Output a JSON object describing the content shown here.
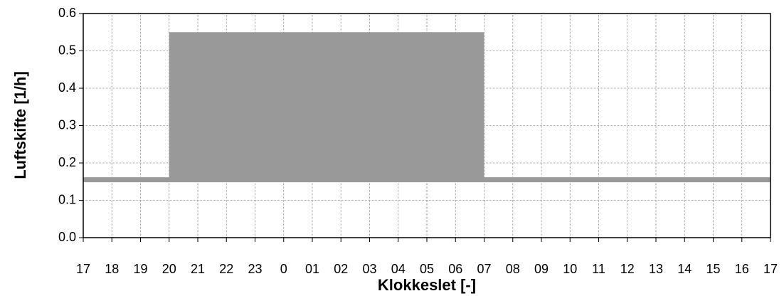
{
  "chart_data": {
    "type": "line",
    "xlabel": "Klokkeslet [-]",
    "ylabel": "Luftskifte [1/h]",
    "xlim": [
      0,
      24
    ],
    "xticks": [
      {
        "value": 0,
        "label": "17"
      },
      {
        "value": 1,
        "label": "18"
      },
      {
        "value": 2,
        "label": "19"
      },
      {
        "value": 3,
        "label": "20"
      },
      {
        "value": 4,
        "label": "21"
      },
      {
        "value": 5,
        "label": "22"
      },
      {
        "value": 6,
        "label": "23"
      },
      {
        "value": 7,
        "label": "0"
      },
      {
        "value": 8,
        "label": "01"
      },
      {
        "value": 9,
        "label": "02"
      },
      {
        "value": 10,
        "label": "03"
      },
      {
        "value": 11,
        "label": "04"
      },
      {
        "value": 12,
        "label": "05"
      },
      {
        "value": 13,
        "label": "06"
      },
      {
        "value": 14,
        "label": "07"
      },
      {
        "value": 15,
        "label": "08"
      },
      {
        "value": 16,
        "label": "09"
      },
      {
        "value": 17,
        "label": "10"
      },
      {
        "value": 18,
        "label": "11"
      },
      {
        "value": 19,
        "label": "12"
      },
      {
        "value": 20,
        "label": "13"
      },
      {
        "value": 21,
        "label": "14"
      },
      {
        "value": 22,
        "label": "15"
      },
      {
        "value": 23,
        "label": "16"
      },
      {
        "value": 24,
        "label": "17"
      }
    ],
    "ylim": [
      0,
      0.6
    ],
    "yticks": [
      {
        "value": 0,
        "label": "0.0"
      },
      0.1,
      0.2,
      0.3,
      0.4,
      0.5,
      0.6
    ],
    "grid": true,
    "series": [
      {
        "color": "#999999",
        "x": [
          0,
          24
        ],
        "values": [
          0.155,
          0.155
        ]
      },
      {
        "color": "#999999",
        "fill": true,
        "x": [
          3,
          14
        ],
        "values": [
          0.55,
          0.55
        ],
        "lower": [
          0.15,
          0.15
        ]
      }
    ]
  }
}
